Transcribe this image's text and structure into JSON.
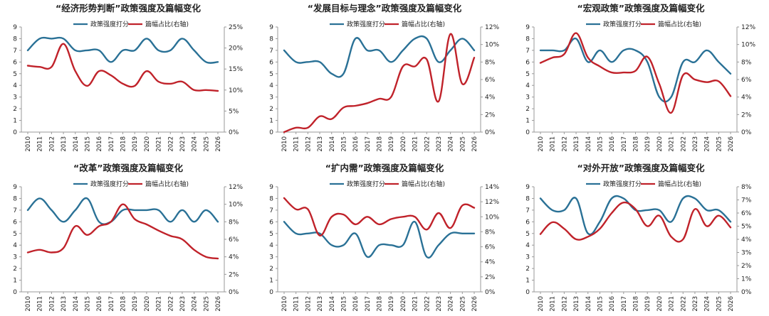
{
  "colors": {
    "score": "#2a7196",
    "share": "#c0222a"
  },
  "chart_data": [
    {
      "type": "line",
      "title": "“经济形势判断”政策强度及篇幅变化",
      "x": [
        "2010",
        "2011",
        "2012",
        "2013",
        "2014",
        "2015",
        "2016",
        "2017",
        "2018",
        "2019",
        "2020",
        "2021",
        "2022",
        "2023",
        "2024",
        "2025",
        "2026"
      ],
      "y_left_ticks": [
        "0",
        "1",
        "2",
        "3",
        "4",
        "5",
        "6",
        "7",
        "8",
        "9"
      ],
      "y_left_range": [
        0,
        9
      ],
      "y_right_ticks": [
        "0%",
        "5%",
        "10%",
        "15%",
        "20%",
        "25%"
      ],
      "y_right_range": [
        0,
        25
      ],
      "series": [
        {
          "name": "政策强度打分",
          "axis": "left",
          "values": [
            7,
            8,
            8,
            8,
            7,
            7,
            7,
            6,
            7,
            7,
            8,
            7,
            7,
            8,
            7,
            6,
            6
          ]
        },
        {
          "name": "篇幅占比(右轴)",
          "axis": "right",
          "values": [
            15.8,
            15.5,
            15.5,
            21,
            14.5,
            11,
            14.5,
            13.5,
            11.5,
            11,
            14.5,
            12,
            11.5,
            12,
            10,
            10,
            9.8
          ]
        }
      ]
    },
    {
      "type": "line",
      "title": "“发展目标与理念”政策强度及篇幅变化",
      "x": [
        "2010",
        "2011",
        "2012",
        "2013",
        "2014",
        "2015",
        "2016",
        "2017",
        "2018",
        "2019",
        "2020",
        "2021",
        "2022",
        "2023",
        "2024",
        "2025",
        "2026"
      ],
      "y_left_ticks": [
        "0",
        "1",
        "2",
        "3",
        "4",
        "5",
        "6",
        "7",
        "8",
        "9"
      ],
      "y_left_range": [
        0,
        9
      ],
      "y_right_ticks": [
        "0%",
        "2%",
        "4%",
        "6%",
        "8%",
        "10%",
        "12%"
      ],
      "y_right_range": [
        0,
        12
      ],
      "series": [
        {
          "name": "政策强度打分",
          "axis": "left",
          "values": [
            7,
            6,
            6,
            6,
            5,
            5,
            8,
            7,
            7,
            6,
            7,
            8,
            8,
            6,
            7,
            8,
            7
          ]
        },
        {
          "name": "篇幅占比(右轴)",
          "axis": "right",
          "values": [
            0,
            0.5,
            0.5,
            1.8,
            1.5,
            2.8,
            3,
            3.3,
            3.8,
            4,
            7.5,
            7.5,
            8.3,
            3.5,
            11.2,
            5.5,
            8.5
          ]
        }
      ]
    },
    {
      "type": "line",
      "title": "“宏观政策”政策强度及篇幅变化",
      "x": [
        "2010",
        "2011",
        "2012",
        "2013",
        "2014",
        "2015",
        "2016",
        "2017",
        "2018",
        "2019",
        "2020",
        "2021",
        "2022",
        "2023",
        "2024",
        "2025",
        "2026"
      ],
      "y_left_ticks": [
        "0",
        "1",
        "2",
        "3",
        "4",
        "5",
        "6",
        "7",
        "8",
        "9"
      ],
      "y_left_range": [
        0,
        9
      ],
      "y_right_ticks": [
        "0%",
        "2%",
        "4%",
        "6%",
        "8%",
        "10%",
        "12%"
      ],
      "y_right_range": [
        0,
        12
      ],
      "series": [
        {
          "name": "政策强度打分",
          "axis": "left",
          "values": [
            7,
            7,
            7,
            8,
            6,
            7,
            6,
            7,
            7,
            6,
            3,
            3,
            6,
            6,
            7,
            6,
            5
          ]
        },
        {
          "name": "篇幅占比(右轴)",
          "axis": "right",
          "values": [
            7.9,
            8.5,
            8.9,
            11.3,
            8.5,
            7.5,
            6.8,
            6.8,
            7,
            8.6,
            5.5,
            2.2,
            6.5,
            6,
            5.7,
            5.8,
            4.1
          ]
        }
      ]
    },
    {
      "type": "line",
      "title": "“改革”政策强度及篇幅变化",
      "x": [
        "2010",
        "2011",
        "2012",
        "2013",
        "2014",
        "2015",
        "2016",
        "2017",
        "2018",
        "2019",
        "2020",
        "2021",
        "2022",
        "2023",
        "2024",
        "2025",
        "2026"
      ],
      "y_left_ticks": [
        "0",
        "1",
        "2",
        "3",
        "4",
        "5",
        "6",
        "7",
        "8",
        "9"
      ],
      "y_left_range": [
        0,
        9
      ],
      "y_right_ticks": [
        "0%",
        "2%",
        "4%",
        "6%",
        "8%",
        "10%",
        "12%"
      ],
      "y_right_range": [
        0,
        12
      ],
      "series": [
        {
          "name": "政策强度打分",
          "axis": "left",
          "values": [
            7,
            8,
            7,
            6,
            7,
            8,
            6,
            6,
            7,
            7,
            7,
            7,
            6,
            7,
            6,
            7,
            6
          ]
        },
        {
          "name": "篇幅占比(右轴)",
          "axis": "right",
          "values": [
            4.5,
            4.8,
            4.5,
            5,
            7.5,
            6.5,
            7.5,
            8,
            10,
            8.3,
            7.7,
            7,
            6.4,
            6,
            4.8,
            4,
            3.8
          ]
        }
      ]
    },
    {
      "type": "line",
      "title": "“扩内需”政策强度及篇幅变化",
      "x": [
        "2010",
        "2011",
        "2012",
        "2013",
        "2014",
        "2015",
        "2016",
        "2017",
        "2018",
        "2019",
        "2020",
        "2021",
        "2022",
        "2023",
        "2024",
        "2025",
        "2026"
      ],
      "y_left_ticks": [
        "0",
        "1",
        "2",
        "3",
        "4",
        "5",
        "6",
        "7",
        "8",
        "9"
      ],
      "y_left_range": [
        0,
        9
      ],
      "y_right_ticks": [
        "0%",
        "2%",
        "4%",
        "6%",
        "8%",
        "10%",
        "12%",
        "14%"
      ],
      "y_right_range": [
        0,
        14
      ],
      "series": [
        {
          "name": "政策强度打分",
          "axis": "left",
          "values": [
            6,
            5,
            5,
            5,
            4,
            4,
            5,
            3,
            4,
            4,
            4,
            6,
            3,
            4,
            5,
            5,
            5
          ]
        },
        {
          "name": "篇幅占比(右轴)",
          "axis": "right",
          "values": [
            12.5,
            11,
            11,
            7.5,
            10,
            10.3,
            9,
            10,
            9,
            9.7,
            10,
            10,
            8.3,
            10.5,
            8.5,
            11.5,
            11.2
          ]
        }
      ]
    },
    {
      "type": "line",
      "title": "“对外开放”政策强度及篇幅变化",
      "x": [
        "2010",
        "2011",
        "2012",
        "2013",
        "2014",
        "2015",
        "2016",
        "2017",
        "2018",
        "2019",
        "2020",
        "2021",
        "2022",
        "2023",
        "2024",
        "2025",
        "2026"
      ],
      "y_left_ticks": [
        "0",
        "1",
        "2",
        "3",
        "4",
        "5",
        "6",
        "7",
        "8",
        "9"
      ],
      "y_left_range": [
        0,
        9
      ],
      "y_right_ticks": [
        "0%",
        "1%",
        "2%",
        "3%",
        "4%",
        "5%",
        "6%",
        "7%",
        "8%"
      ],
      "y_right_range": [
        0,
        8
      ],
      "series": [
        {
          "name": "政策强度打分",
          "axis": "left",
          "values": [
            8,
            7,
            7,
            8,
            5,
            6,
            8,
            8,
            7,
            7,
            7,
            6,
            8,
            8,
            7,
            7,
            6
          ]
        },
        {
          "name": "篇幅占比(右轴)",
          "axis": "right",
          "values": [
            4.4,
            5.3,
            4.8,
            4,
            4.2,
            4.8,
            6,
            6.8,
            6.3,
            5,
            5.8,
            4.2,
            4,
            6.3,
            5,
            5.8,
            4.9
          ]
        }
      ]
    }
  ]
}
